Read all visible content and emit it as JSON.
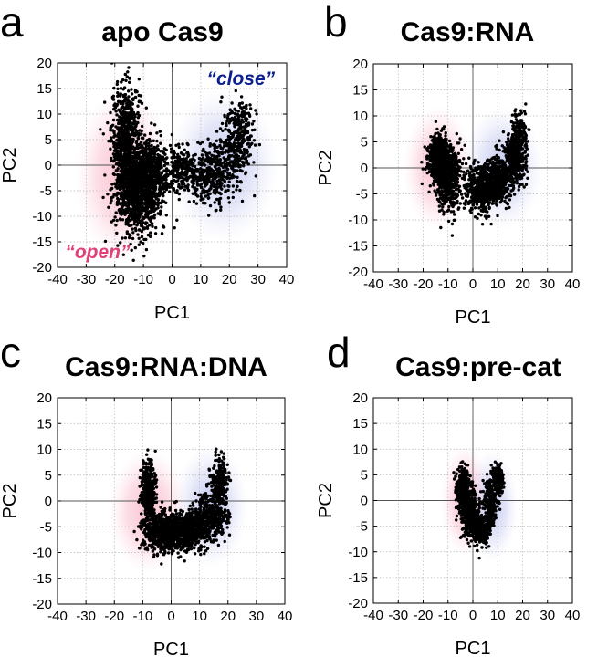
{
  "colors": {
    "open": "#e0407a",
    "close": "#0a1e8c",
    "points": "#000000",
    "grid": "#b8b8b8"
  },
  "chart_data": [
    {
      "type": "scatter",
      "panel": "a",
      "title": "apo Cas9",
      "xlabel": "PC1",
      "ylabel": "PC2",
      "xlim": [
        -40,
        40
      ],
      "ylim": [
        -20,
        20
      ],
      "xticks": [
        -40,
        -30,
        -20,
        -10,
        0,
        10,
        20,
        30,
        40
      ],
      "yticks": [
        20,
        15,
        10,
        5,
        0,
        -5,
        -10,
        -15,
        -20
      ],
      "grid": true,
      "annotations": [
        {
          "text": "“close”",
          "x": 24,
          "y": 17,
          "color": "close"
        },
        {
          "text": "“open”",
          "x": -26,
          "y": -17,
          "color": "open"
        }
      ],
      "regions": [
        {
          "name": "open",
          "cx": -17,
          "cy": -2,
          "rx": 17,
          "ry": 17
        },
        {
          "name": "close",
          "cx": 18,
          "cy": 0,
          "rx": 19,
          "ry": 15
        }
      ],
      "clusters": [
        {
          "cx": -16,
          "cy": 5,
          "sx": 2.6,
          "sy": 5.5,
          "n": 700
        },
        {
          "cx": -12,
          "cy": -5,
          "sx": 3.8,
          "sy": 4.2,
          "n": 1000
        },
        {
          "cx": -7,
          "cy": -2,
          "sx": 3.0,
          "sy": 3.5,
          "n": 450
        },
        {
          "cx": 3,
          "cy": -1,
          "sx": 3.0,
          "sy": 2.2,
          "n": 200
        },
        {
          "cx": 13,
          "cy": -2,
          "sx": 4.0,
          "sy": 3.0,
          "n": 350
        },
        {
          "cx": 22,
          "cy": 4,
          "sx": 2.8,
          "sy": 3.2,
          "n": 300
        },
        {
          "cx": 25,
          "cy": 9,
          "sx": 2.0,
          "sy": 2.2,
          "n": 80
        }
      ]
    },
    {
      "type": "scatter",
      "panel": "b",
      "title": "Cas9:RNA",
      "xlabel": "PC1",
      "ylabel": "PC2",
      "xlim": [
        -40,
        40
      ],
      "ylim": [
        -20,
        20
      ],
      "xticks": [
        -40,
        -30,
        -20,
        -10,
        0,
        10,
        20,
        30,
        40
      ],
      "yticks": [
        20,
        15,
        10,
        5,
        0,
        -5,
        -10,
        -15,
        -20
      ],
      "grid": true,
      "annotations": [],
      "regions": [
        {
          "name": "open",
          "cx": -14,
          "cy": 0,
          "rx": 14,
          "ry": 12
        },
        {
          "name": "close",
          "cx": 12,
          "cy": 0,
          "rx": 16,
          "ry": 12
        }
      ],
      "clusters": [
        {
          "cx": -14,
          "cy": 2,
          "sx": 2.0,
          "sy": 2.2,
          "n": 500
        },
        {
          "cx": -10,
          "cy": -2,
          "sx": 2.5,
          "sy": 3.0,
          "n": 600
        },
        {
          "cx": 3,
          "cy": -4,
          "sx": 3.0,
          "sy": 2.2,
          "n": 500
        },
        {
          "cx": 10,
          "cy": -2,
          "sx": 3.0,
          "sy": 2.2,
          "n": 450
        },
        {
          "cx": 17,
          "cy": 2,
          "sx": 2.0,
          "sy": 2.4,
          "n": 400
        },
        {
          "cx": 19,
          "cy": 7,
          "sx": 1.4,
          "sy": 2.0,
          "n": 120
        }
      ]
    },
    {
      "type": "scatter",
      "panel": "c",
      "title": "Cas9:RNA:DNA",
      "xlabel": "PC1",
      "ylabel": "PC2",
      "xlim": [
        -40,
        40
      ],
      "ylim": [
        -20,
        20
      ],
      "xticks": [
        -40,
        -30,
        -20,
        -10,
        0,
        10,
        20,
        30,
        40
      ],
      "yticks": [
        20,
        15,
        10,
        5,
        0,
        -5,
        -10,
        -15,
        -20
      ],
      "grid": true,
      "annotations": [],
      "regions": [
        {
          "name": "open",
          "cx": -8,
          "cy": -2,
          "rx": 14,
          "ry": 12
        },
        {
          "name": "close",
          "cx": 14,
          "cy": -1,
          "rx": 13,
          "ry": 12
        }
      ],
      "clusters": [
        {
          "cx": -8,
          "cy": 2,
          "sx": 1.3,
          "sy": 3.0,
          "n": 350
        },
        {
          "cx": -3,
          "cy": -6,
          "sx": 3.5,
          "sy": 1.8,
          "n": 700
        },
        {
          "cx": 6,
          "cy": -6,
          "sx": 3.5,
          "sy": 1.8,
          "n": 500
        },
        {
          "cx": 14,
          "cy": -3,
          "sx": 3.0,
          "sy": 2.2,
          "n": 350
        },
        {
          "cx": 17,
          "cy": 3,
          "sx": 1.5,
          "sy": 2.6,
          "n": 250
        }
      ]
    },
    {
      "type": "scatter",
      "panel": "d",
      "title": "Cas9:pre-cat",
      "xlabel": "PC1",
      "ylabel": "PC2",
      "xlim": [
        -40,
        40
      ],
      "ylim": [
        -20,
        20
      ],
      "xticks": [
        -40,
        -30,
        -20,
        -10,
        0,
        10,
        20,
        30,
        40
      ],
      "yticks": [
        20,
        15,
        10,
        5,
        0,
        -5,
        -10,
        -15,
        -20
      ],
      "grid": true,
      "annotations": [],
      "regions": [
        {
          "name": "open",
          "cx": -3,
          "cy": 0,
          "rx": 10,
          "ry": 11
        },
        {
          "name": "close",
          "cx": 8,
          "cy": -1,
          "rx": 10,
          "ry": 11
        }
      ],
      "clusters": [
        {
          "cx": -4,
          "cy": 2,
          "sx": 1.5,
          "sy": 2.2,
          "n": 350
        },
        {
          "cx": -1,
          "cy": -3,
          "sx": 1.8,
          "sy": 2.2,
          "n": 400
        },
        {
          "cx": 3,
          "cy": -6,
          "sx": 1.6,
          "sy": 1.4,
          "n": 250
        },
        {
          "cx": 7,
          "cy": -1,
          "sx": 1.4,
          "sy": 2.5,
          "n": 250
        },
        {
          "cx": 10,
          "cy": 4,
          "sx": 1.2,
          "sy": 1.6,
          "n": 200
        }
      ]
    }
  ]
}
